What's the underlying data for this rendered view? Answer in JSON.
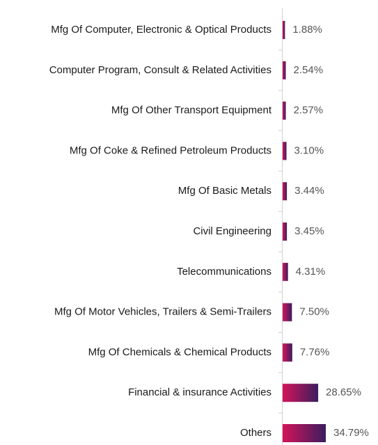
{
  "chart_data": {
    "type": "hbar",
    "categories": [
      "Mfg Of Computer, Electronic & Optical Products",
      "Computer Program, Consult & Related Activities",
      "Mfg Of Other Transport Equipment",
      "Mfg Of Coke & Refined Petroleum Products",
      "Mfg Of Basic Metals",
      "Civil Engineering",
      "Telecommunications",
      "Mfg Of Motor Vehicles, Trailers & Semi-Trailers",
      "Mfg Of Chemicals & Chemical Products",
      "Financial & insurance Activities",
      "Others"
    ],
    "values": [
      1.88,
      2.54,
      2.57,
      3.1,
      3.44,
      3.45,
      4.31,
      7.5,
      7.76,
      28.65,
      34.79
    ],
    "value_labels": [
      "1.88%",
      "2.54%",
      "2.57%",
      "3.10%",
      "3.44%",
      "3.45%",
      "4.31%",
      "7.50%",
      "7.76%",
      "28.65%",
      "34.79%"
    ],
    "gradient": [
      "#d4145a",
      "#3b1d5e"
    ]
  }
}
